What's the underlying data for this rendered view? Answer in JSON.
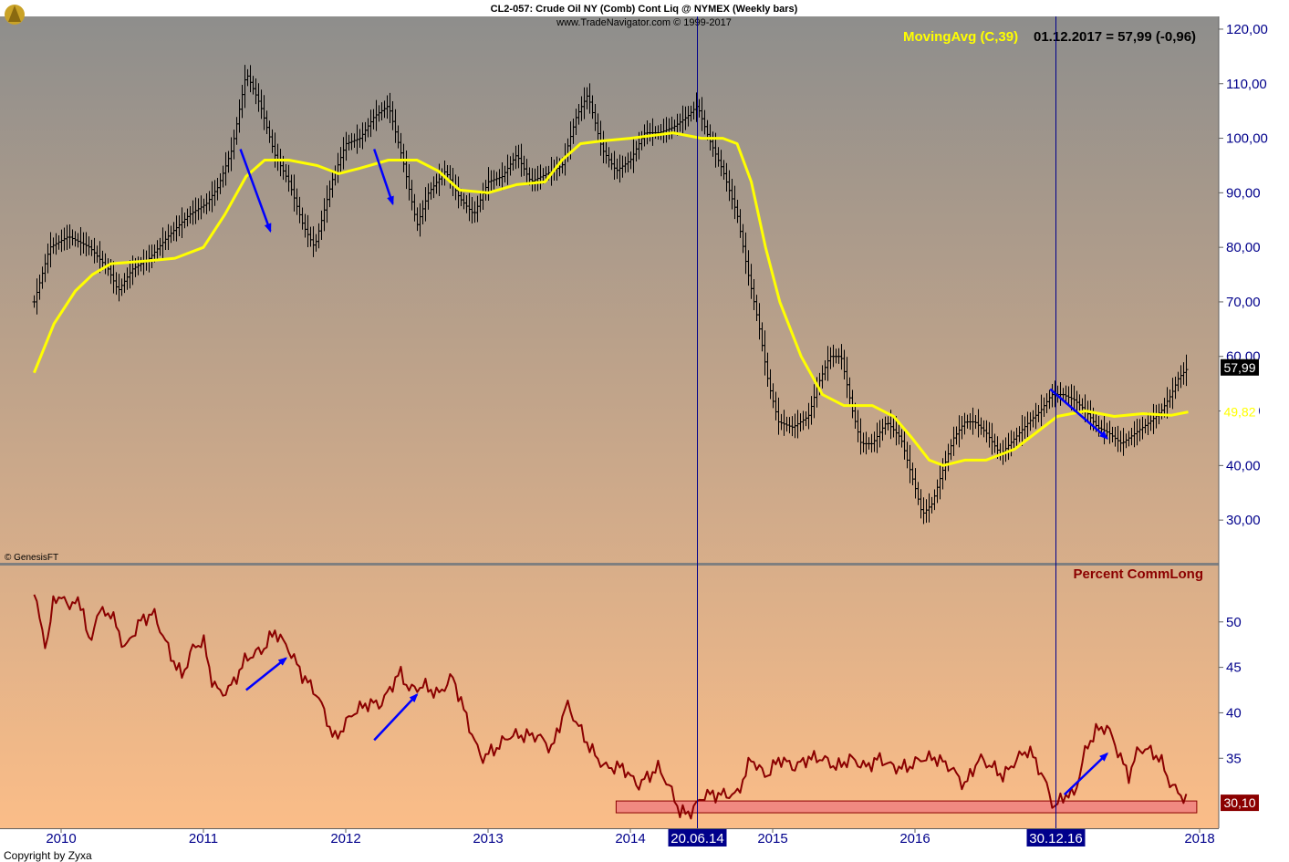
{
  "header": {
    "title": "CL2-057:  Crude Oil NY (Comb) Cont Liq @ NYMEX  (Weekly bars)",
    "subtitle": "www.TradeNavigator.com © 1999-2017"
  },
  "colors": {
    "background_top": "#8e8e8c",
    "background_bottom": "#fbbd88",
    "price_bars": "#000000",
    "moving_average": "#ffff00",
    "commlong_line": "#8b0000",
    "arrows": "#0000ff",
    "zone_fill": "#f08080",
    "axis_labels": "#00008b",
    "date_marker_bg": "#00008b"
  },
  "copyright": "© GenesisFT",
  "footer": "Copyright by Zyxa",
  "chart_data": [
    {
      "type": "bar",
      "name": "Crude Oil NY weekly bars with MovingAvg (C,39)",
      "legend": {
        "ma_label": "MovingAvg (C,39)",
        "last_value_text": "01.12.2017 = 57,99 (-0,96)"
      },
      "ylim": [
        23,
        122
      ],
      "y_ticks": [
        "30,00",
        "40,00",
        "50,00",
        "60,00",
        "70,00",
        "80,00",
        "90,00",
        "100,00",
        "110,00",
        "120,00"
      ],
      "y_tick_values": [
        30,
        40,
        50,
        60,
        70,
        80,
        90,
        100,
        110,
        120
      ],
      "last_close_label": "57,99",
      "last_ma_label": "49,82",
      "close_series": {
        "t": [
          2009.81,
          2009.92,
          2010.05,
          2010.2,
          2010.33,
          2010.4,
          2010.5,
          2010.62,
          2010.75,
          2010.9,
          2011.02,
          2011.1,
          2011.2,
          2011.3,
          2011.4,
          2011.5,
          2011.6,
          2011.7,
          2011.78,
          2011.9,
          2012.0,
          2012.1,
          2012.2,
          2012.3,
          2012.4,
          2012.5,
          2012.58,
          2012.7,
          2012.8,
          2012.9,
          2013.0,
          2013.1,
          2013.2,
          2013.3,
          2013.45,
          2013.52,
          2013.62,
          2013.7,
          2013.8,
          2013.9,
          2014.0,
          2014.1,
          2014.2,
          2014.3,
          2014.4,
          2014.47,
          2014.55,
          2014.65,
          2014.75,
          2014.82,
          2014.9,
          2014.97,
          2015.04,
          2015.14,
          2015.25,
          2015.32,
          2015.4,
          2015.48,
          2015.56,
          2015.62,
          2015.7,
          2015.8,
          2015.9,
          2016.0,
          2016.05,
          2016.12,
          2016.18,
          2016.27,
          2016.35,
          2016.42,
          2016.5,
          2016.6,
          2016.7,
          2016.8,
          2016.88,
          2016.96,
          2017.04,
          2017.12,
          2017.2,
          2017.28,
          2017.36,
          2017.45,
          2017.55,
          2017.65,
          2017.73,
          2017.8,
          2017.85,
          2017.92
        ],
        "v": [
          70,
          80,
          82,
          80,
          76,
          72,
          76,
          78,
          82,
          86,
          88,
          91,
          98,
          112,
          106,
          97,
          92,
          84,
          80,
          92,
          99,
          100,
          104,
          106,
          96,
          84,
          90,
          94,
          89,
          86,
          92,
          93,
          97,
          92,
          94,
          95,
          104,
          108,
          98,
          94,
          96,
          101,
          101,
          102,
          104,
          106,
          100,
          94,
          86,
          76,
          66,
          55,
          48,
          47,
          49,
          55,
          60,
          60,
          50,
          44,
          44,
          48,
          45,
          36,
          31,
          33,
          38,
          45,
          48,
          48,
          46,
          42,
          45,
          48,
          50,
          53,
          53,
          52,
          50,
          47,
          46,
          44,
          46,
          48,
          50,
          53,
          56,
          57.99
        ]
      },
      "ma_series": {
        "t": [
          2009.81,
          2009.95,
          2010.1,
          2010.22,
          2010.35,
          2010.6,
          2010.8,
          2011.0,
          2011.15,
          2011.3,
          2011.43,
          2011.6,
          2011.8,
          2011.95,
          2012.1,
          2012.3,
          2012.5,
          2012.65,
          2012.8,
          2013.0,
          2013.2,
          2013.4,
          2013.52,
          2013.65,
          2013.8,
          2014.0,
          2014.3,
          2014.5,
          2014.65,
          2014.75,
          2014.85,
          2014.95,
          2015.05,
          2015.2,
          2015.35,
          2015.5,
          2015.7,
          2015.85,
          2015.98,
          2016.1,
          2016.2,
          2016.35,
          2016.5,
          2016.7,
          2016.85,
          2017.0,
          2017.2,
          2017.4,
          2017.6,
          2017.8,
          2017.92
        ],
        "v": [
          57,
          66,
          72,
          75,
          77,
          77.5,
          78,
          80,
          86,
          93,
          96,
          96,
          95,
          93.5,
          94.5,
          96,
          96,
          94,
          90.5,
          90,
          91.5,
          92,
          96,
          99,
          99.5,
          100,
          101,
          100,
          100,
          99,
          92,
          80,
          70,
          60,
          53,
          51,
          51,
          49,
          45,
          41,
          40,
          41,
          41,
          43,
          46,
          49,
          50,
          49,
          49.5,
          49.2,
          49.82
        ]
      },
      "arrows": [
        {
          "from_t": 2011.26,
          "from_v": 98,
          "to_t": 2011.47,
          "to_v": 83
        },
        {
          "from_t": 2012.2,
          "from_v": 98,
          "to_t": 2012.33,
          "to_v": 88
        },
        {
          "from_t": 2016.95,
          "from_v": 54,
          "to_t": 2017.35,
          "to_v": 45
        }
      ]
    },
    {
      "type": "line",
      "name": "Percent CommLong",
      "legend_label": "Percent CommLong",
      "ylim": [
        27.5,
        56
      ],
      "y_ticks": [
        "35",
        "40",
        "45",
        "50"
      ],
      "y_tick_values": [
        35,
        40,
        45,
        50
      ],
      "last_value_label": "30,10",
      "series": {
        "t": [
          2009.81,
          2009.9,
          2009.95,
          2010.05,
          2010.15,
          2010.2,
          2010.25,
          2010.35,
          2010.45,
          2010.55,
          2010.65,
          2010.78,
          2010.85,
          2010.92,
          2011.0,
          2011.05,
          2011.12,
          2011.2,
          2011.3,
          2011.42,
          2011.5,
          2011.6,
          2011.7,
          2011.8,
          2011.85,
          2011.92,
          2012.05,
          2012.15,
          2012.25,
          2012.38,
          2012.45,
          2012.55,
          2012.65,
          2012.75,
          2012.88,
          2012.95,
          2013.05,
          2013.15,
          2013.25,
          2013.35,
          2013.45,
          2013.55,
          2013.62,
          2013.72,
          2013.82,
          2013.95,
          2014.05,
          2014.2,
          2014.3,
          2014.35,
          2014.42,
          2014.47,
          2014.52,
          2014.62,
          2014.75,
          2014.85,
          2014.95,
          2015.05,
          2015.15,
          2015.25,
          2015.35,
          2015.45,
          2015.55,
          2015.65,
          2015.75,
          2015.85,
          2015.95,
          2016.05,
          2016.15,
          2016.25,
          2016.35,
          2016.45,
          2016.55,
          2016.62,
          2016.72,
          2016.8,
          2016.9,
          2016.98,
          2017.05,
          2017.12,
          2017.2,
          2017.27,
          2017.35,
          2017.42,
          2017.5,
          2017.57,
          2017.63,
          2017.72,
          2017.8,
          2017.87,
          2017.92
        ],
        "v": [
          53,
          47,
          53,
          52,
          52,
          47,
          51,
          51,
          47,
          50,
          51,
          46,
          44,
          47,
          48,
          44,
          42,
          43,
          46,
          47,
          49,
          47,
          44,
          42,
          40,
          37,
          40,
          41,
          41,
          44.5,
          42.5,
          43,
          42,
          44,
          38,
          35,
          36,
          37.5,
          37.5,
          37.5,
          36,
          41,
          39,
          36,
          34,
          34,
          32,
          34,
          31,
          29,
          29,
          30,
          31,
          31,
          31,
          35,
          33,
          35,
          34,
          35,
          35,
          34,
          35,
          34,
          35,
          34,
          34,
          35,
          35,
          34,
          32,
          35,
          34,
          33,
          35,
          36,
          33,
          29.5,
          31,
          31,
          36,
          38,
          38.5,
          36,
          33,
          36,
          36,
          35,
          32,
          31,
          30.1
        ]
      },
      "zone": {
        "from_t": 2013.9,
        "to_t": 2017.98,
        "v_low": 29,
        "v_high": 30.3
      }
    }
  ],
  "x_axis": {
    "year_labels": [
      "2010",
      "2011",
      "2012",
      "2013",
      "2014",
      "2015",
      "2016",
      "2017",
      "2018"
    ],
    "year_values": [
      2010,
      2011,
      2012,
      2013,
      2014,
      2015,
      2016,
      2017,
      2018
    ],
    "markers": [
      {
        "t": 2014.47,
        "label": "20.06.14"
      },
      {
        "t": 2016.99,
        "label": "30.12.16"
      }
    ]
  }
}
